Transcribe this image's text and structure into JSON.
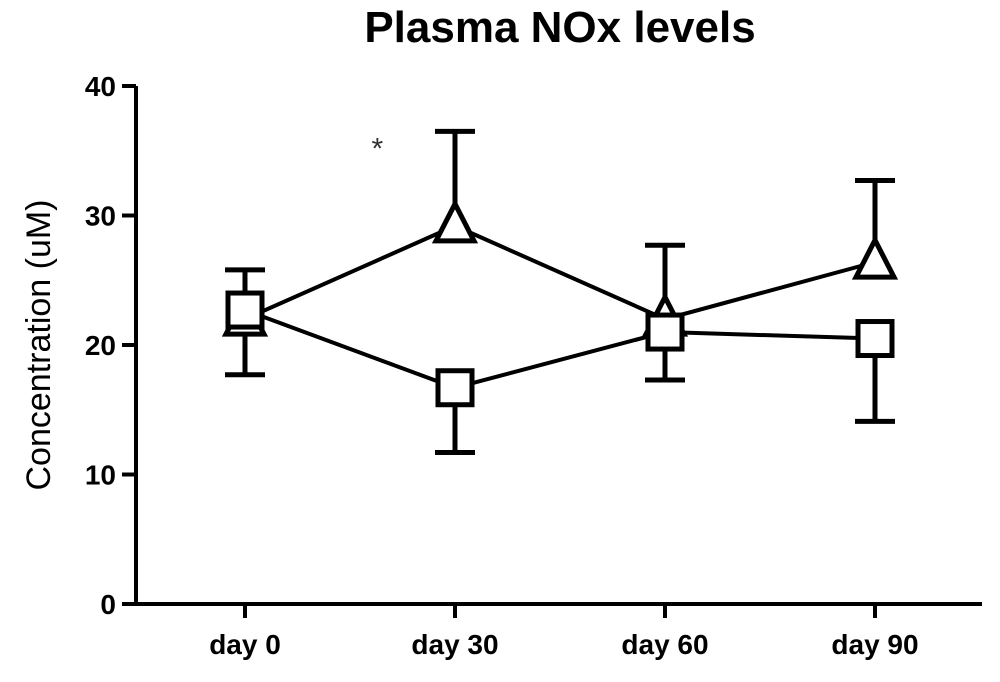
{
  "chart_data": {
    "type": "line",
    "title": "Plasma NOx levels",
    "xlabel": "",
    "ylabel": "Concentration (uM)",
    "categories": [
      "day 0",
      "day 30",
      "day 60",
      "day 90"
    ],
    "ylim": [
      0,
      40
    ],
    "yticks": [
      0,
      10,
      20,
      30,
      40
    ],
    "grid": false,
    "series": [
      {
        "marker": "triangle",
        "values": [
          22.0,
          29.2,
          22.0,
          26.4
        ],
        "err_upper": [
          25.8,
          36.5,
          27.7,
          32.7
        ],
        "err_lower": [
          17.7,
          29.2,
          17.3,
          26.4
        ]
      },
      {
        "marker": "square",
        "values": [
          22.7,
          16.7,
          21.0,
          20.5
        ],
        "err_upper": [
          22.7,
          16.7,
          21.0,
          20.5
        ],
        "err_lower": [
          22.7,
          11.7,
          21.0,
          14.1
        ]
      }
    ],
    "annotations": [
      {
        "text": "*",
        "x": "day 30",
        "y": 35.5,
        "offset_category": -0.37
      }
    ]
  }
}
